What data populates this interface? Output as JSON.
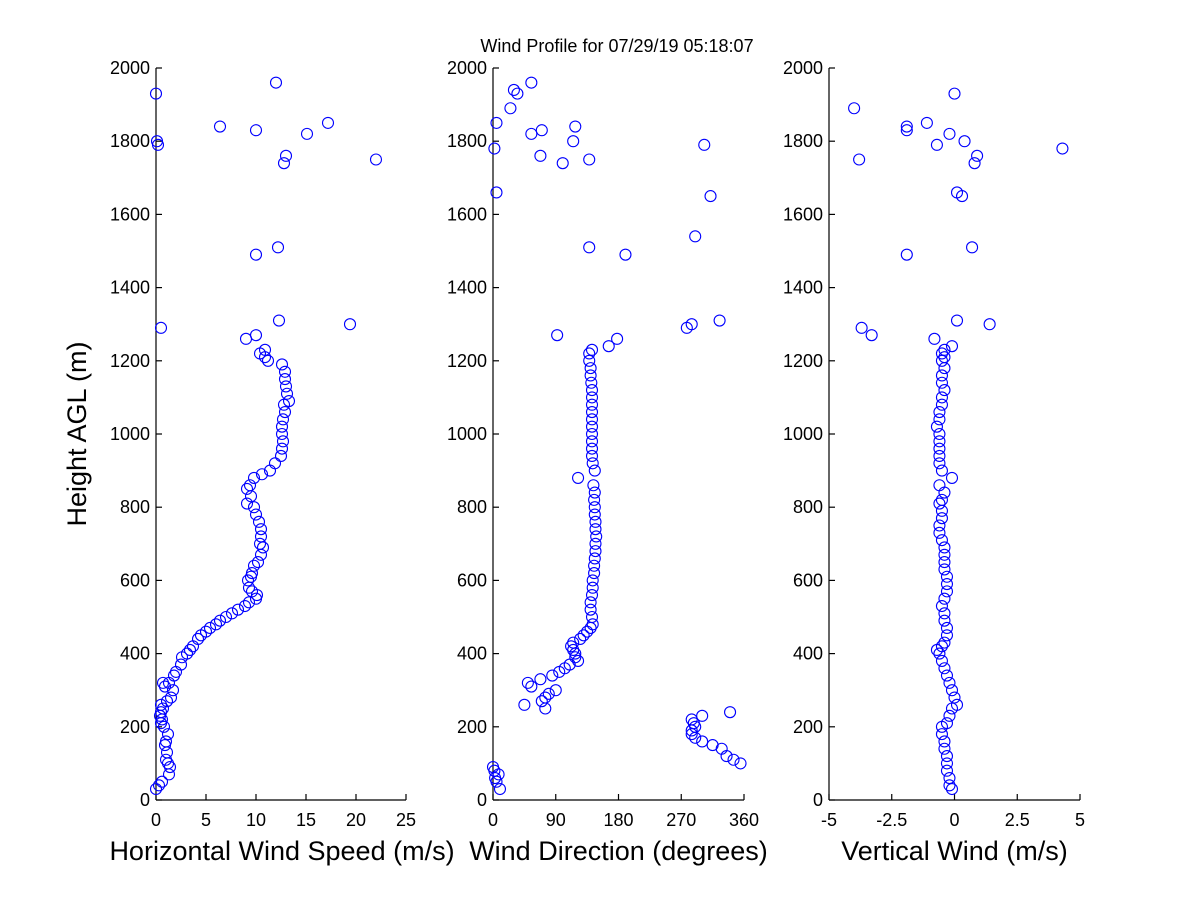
{
  "figure": {
    "title": "Wind Profile for  07/29/19 05:18:07"
  },
  "chart_data": [
    {
      "type": "scatter",
      "name": "horizontal-wind-speed",
      "xlabel": "Horizontal Wind Speed (m/s)",
      "ylabel": "Height AGL (m)",
      "xlim": [
        0,
        25
      ],
      "ylim": [
        0,
        2000
      ],
      "xticks": [
        0,
        5,
        10,
        15,
        20,
        25
      ],
      "yticks": [
        0,
        200,
        400,
        600,
        800,
        1000,
        1200,
        1400,
        1600,
        1800,
        2000
      ],
      "grid": false,
      "marker_color": "#0000ff",
      "points": [
        [
          0.0,
          30
        ],
        [
          0.3,
          40
        ],
        [
          0.6,
          50
        ],
        [
          1.3,
          70
        ],
        [
          1.4,
          90
        ],
        [
          1.2,
          100
        ],
        [
          1.0,
          110
        ],
        [
          1.1,
          130
        ],
        [
          0.9,
          150
        ],
        [
          1.0,
          160
        ],
        [
          1.2,
          180
        ],
        [
          0.8,
          200
        ],
        [
          0.5,
          210
        ],
        [
          0.6,
          220
        ],
        [
          0.4,
          230
        ],
        [
          0.5,
          240
        ],
        [
          0.7,
          250
        ],
        [
          0.5,
          260
        ],
        [
          1.1,
          270
        ],
        [
          1.5,
          280
        ],
        [
          1.7,
          300
        ],
        [
          0.9,
          310
        ],
        [
          1.3,
          320
        ],
        [
          0.7,
          320
        ],
        [
          1.8,
          340
        ],
        [
          2.0,
          350
        ],
        [
          2.5,
          370
        ],
        [
          2.6,
          390
        ],
        [
          3.1,
          400
        ],
        [
          3.4,
          410
        ],
        [
          3.7,
          420
        ],
        [
          4.2,
          440
        ],
        [
          4.5,
          450
        ],
        [
          5.0,
          460
        ],
        [
          5.4,
          470
        ],
        [
          6.0,
          480
        ],
        [
          6.4,
          490
        ],
        [
          7.0,
          500
        ],
        [
          7.6,
          510
        ],
        [
          8.2,
          520
        ],
        [
          8.9,
          530
        ],
        [
          9.3,
          540
        ],
        [
          10.0,
          550
        ],
        [
          10.1,
          560
        ],
        [
          9.6,
          570
        ],
        [
          9.3,
          580
        ],
        [
          9.2,
          600
        ],
        [
          9.5,
          610
        ],
        [
          9.6,
          620
        ],
        [
          9.8,
          640
        ],
        [
          10.2,
          650
        ],
        [
          10.5,
          670
        ],
        [
          10.7,
          690
        ],
        [
          10.4,
          700
        ],
        [
          10.5,
          720
        ],
        [
          10.5,
          740
        ],
        [
          10.3,
          760
        ],
        [
          10.0,
          780
        ],
        [
          9.8,
          800
        ],
        [
          9.1,
          810
        ],
        [
          9.5,
          830
        ],
        [
          9.1,
          850
        ],
        [
          9.4,
          860
        ],
        [
          9.8,
          880
        ],
        [
          10.6,
          890
        ],
        [
          11.4,
          900
        ],
        [
          11.9,
          920
        ],
        [
          12.5,
          940
        ],
        [
          12.6,
          960
        ],
        [
          12.7,
          980
        ],
        [
          12.6,
          1000
        ],
        [
          12.6,
          1020
        ],
        [
          12.7,
          1040
        ],
        [
          12.9,
          1060
        ],
        [
          12.8,
          1080
        ],
        [
          13.3,
          1090
        ],
        [
          13.1,
          1110
        ],
        [
          13.0,
          1130
        ],
        [
          12.9,
          1150
        ],
        [
          12.9,
          1170
        ],
        [
          12.6,
          1190
        ],
        [
          11.2,
          1200
        ],
        [
          10.9,
          1210
        ],
        [
          10.4,
          1220
        ],
        [
          10.9,
          1230
        ],
        [
          9.0,
          1260
        ],
        [
          10.0,
          1270
        ],
        [
          0.5,
          1290
        ],
        [
          19.4,
          1300
        ],
        [
          12.3,
          1310
        ],
        [
          10.0,
          1490
        ],
        [
          12.2,
          1510
        ],
        [
          22.0,
          1750
        ],
        [
          12.8,
          1740
        ],
        [
          13.0,
          1760
        ],
        [
          0.2,
          1790
        ],
        [
          0.1,
          1800
        ],
        [
          15.1,
          1820
        ],
        [
          10.0,
          1830
        ],
        [
          6.4,
          1840
        ],
        [
          17.2,
          1850
        ],
        [
          0.0,
          1930
        ],
        [
          12.0,
          1960
        ]
      ]
    },
    {
      "type": "scatter",
      "name": "wind-direction",
      "xlabel": "Wind Direction (degrees)",
      "ylabel": "",
      "xlim": [
        0,
        360
      ],
      "ylim": [
        0,
        2000
      ],
      "xticks": [
        0,
        90,
        180,
        270,
        360
      ],
      "yticks": [
        0,
        200,
        400,
        600,
        800,
        1000,
        1200,
        1400,
        1600,
        1800,
        2000
      ],
      "grid": false,
      "marker_color": "#0000ff",
      "points": [
        [
          10,
          30
        ],
        [
          5,
          50
        ],
        [
          3,
          60
        ],
        [
          8,
          70
        ],
        [
          2,
          80
        ],
        [
          0,
          90
        ],
        [
          355,
          100
        ],
        [
          345,
          110
        ],
        [
          335,
          120
        ],
        [
          328,
          140
        ],
        [
          315,
          150
        ],
        [
          300,
          160
        ],
        [
          290,
          170
        ],
        [
          285,
          180
        ],
        [
          285,
          190
        ],
        [
          290,
          200
        ],
        [
          288,
          210
        ],
        [
          285,
          220
        ],
        [
          300,
          230
        ],
        [
          340,
          240
        ],
        [
          75,
          250
        ],
        [
          45,
          260
        ],
        [
          70,
          270
        ],
        [
          75,
          280
        ],
        [
          80,
          290
        ],
        [
          90,
          300
        ],
        [
          55,
          310
        ],
        [
          50,
          320
        ],
        [
          68,
          330
        ],
        [
          85,
          340
        ],
        [
          95,
          350
        ],
        [
          103,
          360
        ],
        [
          110,
          370
        ],
        [
          122,
          380
        ],
        [
          118,
          390
        ],
        [
          118,
          400
        ],
        [
          115,
          410
        ],
        [
          112,
          420
        ],
        [
          115,
          430
        ],
        [
          125,
          440
        ],
        [
          130,
          450
        ],
        [
          135,
          460
        ],
        [
          140,
          470
        ],
        [
          143,
          480
        ],
        [
          142,
          500
        ],
        [
          140,
          520
        ],
        [
          140,
          540
        ],
        [
          142,
          560
        ],
        [
          143,
          580
        ],
        [
          143,
          600
        ],
        [
          145,
          620
        ],
        [
          145,
          640
        ],
        [
          146,
          660
        ],
        [
          147,
          680
        ],
        [
          147,
          700
        ],
        [
          148,
          720
        ],
        [
          147,
          740
        ],
        [
          147,
          760
        ],
        [
          146,
          780
        ],
        [
          146,
          800
        ],
        [
          145,
          820
        ],
        [
          146,
          840
        ],
        [
          144,
          860
        ],
        [
          122,
          880
        ],
        [
          146,
          900
        ],
        [
          143,
          920
        ],
        [
          142,
          940
        ],
        [
          142,
          960
        ],
        [
          142,
          980
        ],
        [
          142,
          1000
        ],
        [
          142,
          1020
        ],
        [
          142,
          1040
        ],
        [
          142,
          1060
        ],
        [
          142,
          1080
        ],
        [
          142,
          1100
        ],
        [
          142,
          1120
        ],
        [
          141,
          1140
        ],
        [
          140,
          1160
        ],
        [
          140,
          1180
        ],
        [
          138,
          1200
        ],
        [
          138,
          1220
        ],
        [
          142,
          1230
        ],
        [
          166,
          1240
        ],
        [
          178,
          1260
        ],
        [
          92,
          1270
        ],
        [
          278,
          1290
        ],
        [
          285,
          1300
        ],
        [
          325,
          1310
        ],
        [
          138,
          1510
        ],
        [
          190,
          1490
        ],
        [
          290,
          1540
        ],
        [
          312,
          1650
        ],
        [
          5,
          1660
        ],
        [
          100,
          1740
        ],
        [
          138,
          1750
        ],
        [
          68,
          1760
        ],
        [
          2,
          1780
        ],
        [
          303,
          1790
        ],
        [
          115,
          1800
        ],
        [
          55,
          1820
        ],
        [
          70,
          1830
        ],
        [
          118,
          1840
        ],
        [
          5,
          1850
        ],
        [
          25,
          1890
        ],
        [
          35,
          1930
        ],
        [
          30,
          1940
        ],
        [
          55,
          1960
        ]
      ]
    },
    {
      "type": "scatter",
      "name": "vertical-wind",
      "xlabel": "Vertical Wind (m/s)",
      "ylabel": "",
      "xlim": [
        -5,
        5
      ],
      "xtick_labels": [
        "-5",
        "-2.5",
        "0",
        "2.5",
        "5"
      ],
      "ylim": [
        0,
        2000
      ],
      "xticks": [
        -5,
        -2.5,
        0,
        2.5,
        5
      ],
      "yticks": [
        0,
        200,
        400,
        600,
        800,
        1000,
        1200,
        1400,
        1600,
        1800,
        2000
      ],
      "grid": false,
      "marker_color": "#0000ff",
      "points": [
        [
          -0.1,
          30
        ],
        [
          -0.2,
          40
        ],
        [
          -0.2,
          60
        ],
        [
          -0.3,
          80
        ],
        [
          -0.3,
          100
        ],
        [
          -0.3,
          120
        ],
        [
          -0.4,
          140
        ],
        [
          -0.4,
          160
        ],
        [
          -0.5,
          180
        ],
        [
          -0.5,
          200
        ],
        [
          -0.3,
          210
        ],
        [
          -0.2,
          230
        ],
        [
          -0.1,
          250
        ],
        [
          0.1,
          260
        ],
        [
          0.0,
          280
        ],
        [
          -0.1,
          300
        ],
        [
          -0.2,
          320
        ],
        [
          -0.3,
          340
        ],
        [
          -0.4,
          360
        ],
        [
          -0.5,
          380
        ],
        [
          -0.6,
          400
        ],
        [
          -0.7,
          410
        ],
        [
          -0.5,
          420
        ],
        [
          -0.4,
          430
        ],
        [
          -0.3,
          450
        ],
        [
          -0.3,
          470
        ],
        [
          -0.4,
          490
        ],
        [
          -0.4,
          510
        ],
        [
          -0.5,
          530
        ],
        [
          -0.4,
          550
        ],
        [
          -0.3,
          570
        ],
        [
          -0.3,
          590
        ],
        [
          -0.3,
          610
        ],
        [
          -0.4,
          630
        ],
        [
          -0.4,
          650
        ],
        [
          -0.4,
          670
        ],
        [
          -0.4,
          690
        ],
        [
          -0.5,
          710
        ],
        [
          -0.6,
          730
        ],
        [
          -0.6,
          750
        ],
        [
          -0.5,
          770
        ],
        [
          -0.5,
          790
        ],
        [
          -0.6,
          810
        ],
        [
          -0.5,
          820
        ],
        [
          -0.4,
          840
        ],
        [
          -0.6,
          860
        ],
        [
          -0.1,
          880
        ],
        [
          -0.5,
          900
        ],
        [
          -0.6,
          920
        ],
        [
          -0.6,
          940
        ],
        [
          -0.6,
          960
        ],
        [
          -0.6,
          980
        ],
        [
          -0.6,
          1000
        ],
        [
          -0.7,
          1020
        ],
        [
          -0.6,
          1040
        ],
        [
          -0.6,
          1060
        ],
        [
          -0.5,
          1080
        ],
        [
          -0.5,
          1100
        ],
        [
          -0.4,
          1120
        ],
        [
          -0.5,
          1140
        ],
        [
          -0.5,
          1160
        ],
        [
          -0.4,
          1180
        ],
        [
          -0.5,
          1200
        ],
        [
          -0.4,
          1210
        ],
        [
          -0.5,
          1220
        ],
        [
          -0.4,
          1230
        ],
        [
          -0.1,
          1240
        ],
        [
          -0.8,
          1260
        ],
        [
          -3.3,
          1270
        ],
        [
          -3.7,
          1290
        ],
        [
          1.4,
          1300
        ],
        [
          0.1,
          1310
        ],
        [
          -1.9,
          1490
        ],
        [
          0.7,
          1510
        ],
        [
          0.3,
          1650
        ],
        [
          0.1,
          1660
        ],
        [
          -3.8,
          1750
        ],
        [
          0.8,
          1740
        ],
        [
          0.9,
          1760
        ],
        [
          4.3,
          1780
        ],
        [
          -0.7,
          1790
        ],
        [
          0.4,
          1800
        ],
        [
          -0.2,
          1820
        ],
        [
          -1.9,
          1830
        ],
        [
          -1.9,
          1840
        ],
        [
          -1.1,
          1850
        ],
        [
          -4.0,
          1890
        ],
        [
          0.0,
          1930
        ]
      ]
    }
  ]
}
